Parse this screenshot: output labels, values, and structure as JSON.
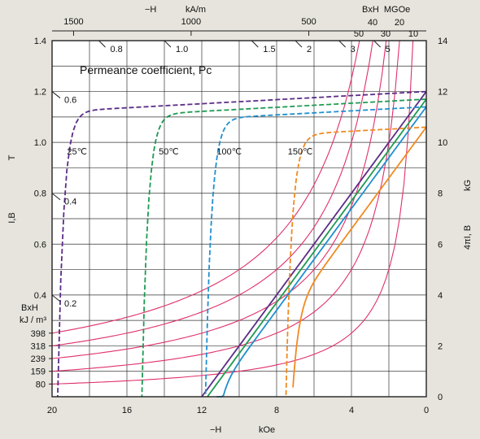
{
  "chart_data": {
    "type": "line",
    "title": "",
    "annotation": "Permeance coefficient, Pc",
    "x_axis": {
      "label_prefix": "−H",
      "unit": "kOe",
      "range": [
        20,
        0
      ],
      "ticks": [
        "20",
        "16",
        "12",
        "8",
        "4",
        "0"
      ]
    },
    "top_axis": {
      "label_prefix": "−H",
      "unit": "kA/m",
      "ticks": [
        {
          "label": "1500",
          "koe": 18.85
        },
        {
          "label": "1000",
          "koe": 12.57
        },
        {
          "label": "500",
          "koe": 6.28
        }
      ]
    },
    "left_axis": {
      "label": "I,B",
      "unit": "T",
      "range": [
        0,
        1.4
      ],
      "ticks": [
        "0.4",
        "0.6",
        "0.8",
        "1.0",
        "1.2",
        "1.4"
      ]
    },
    "right_axis": {
      "label": "4πI, B",
      "unit": "kG",
      "range": [
        0,
        14
      ],
      "ticks": [
        "0",
        "2",
        "4",
        "6",
        "8",
        "10",
        "12",
        "14"
      ]
    },
    "bxh_mgoe": {
      "title": "BxH  MGOe",
      "labels": [
        "50",
        "40",
        "30",
        "20",
        "10"
      ]
    },
    "bxh_kj": {
      "title": "BxH",
      "unit": "kJ / m³",
      "labels": [
        "398",
        "318",
        "239",
        "159",
        "80"
      ],
      "mgoe_values": [
        50,
        40,
        30,
        20,
        10
      ]
    },
    "permeance_labels": [
      "0.8",
      "1.0",
      "1.5",
      "2",
      "3",
      "5",
      "0.6",
      "0.4",
      "0.2"
    ],
    "temperature_curves": [
      {
        "name": "25℃",
        "color": "#5b2c86",
        "Br": 1.2,
        "Hcj": 19.7,
        "slope": 1.08
      },
      {
        "name": "50℃",
        "color": "#1e9a52",
        "Br": 1.17,
        "Hcj": 15.2,
        "slope": 1.08
      },
      {
        "name": "100℃",
        "color": "#1f8fcf",
        "Br": 1.14,
        "Hcj": 11.8,
        "slope": 1.08
      },
      {
        "name": "150℃",
        "color": "#f08a22",
        "Br": 1.06,
        "Hcj": 7.5,
        "slope": 1.08
      }
    ],
    "grid": true,
    "colors": {
      "background": "#e6e4dc",
      "plot_background": "#ffffff",
      "grid": "#333333",
      "bxh_curves": "#e0306a"
    }
  }
}
